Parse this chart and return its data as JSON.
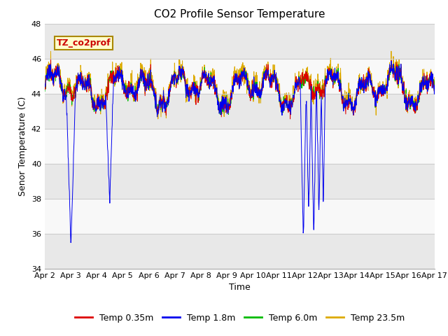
{
  "title": "CO2 Profile Sensor Temperature",
  "xlabel": "Time",
  "ylabel": "Senor Temperature (C)",
  "ylim": [
    34,
    48
  ],
  "xlim_days": [
    0,
    15
  ],
  "x_tick_labels": [
    "Apr 2",
    "Apr 3",
    "Apr 4",
    "Apr 5",
    "Apr 6",
    "Apr 7",
    "Apr 8",
    "Apr 9",
    "Apr 10",
    "Apr 11",
    "Apr 12",
    "Apr 13",
    "Apr 14",
    "Apr 15",
    "Apr 16",
    "Apr 17"
  ],
  "legend_entries": [
    "Temp 0.35m",
    "Temp 1.8m",
    "Temp 6.0m",
    "Temp 23.5m"
  ],
  "colors": [
    "#dd0000",
    "#0000ee",
    "#00bb00",
    "#ddaa00"
  ],
  "annotation_text": "TZ_co2prof",
  "annotation_color": "#cc0000",
  "annotation_bg": "#ffffcc",
  "annotation_border": "#aa8800",
  "title_fontsize": 11,
  "axis_label_fontsize": 9,
  "tick_fontsize": 8,
  "legend_fontsize": 9,
  "grid_color": "#cccccc",
  "band_colors": [
    "#e8e8e8",
    "#f8f8f8"
  ],
  "plot_bg_color": "#e8e8e8"
}
